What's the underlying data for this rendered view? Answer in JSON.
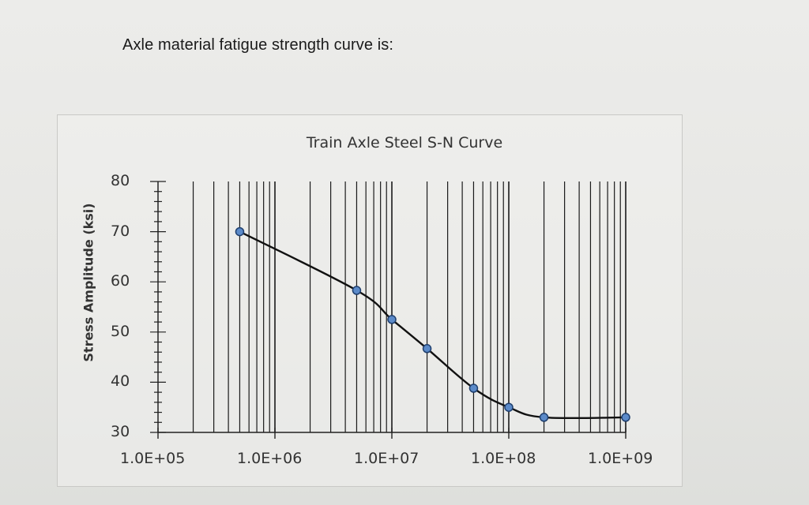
{
  "page": {
    "heading": "Axle material fatigue strength curve is:"
  },
  "chart_data": {
    "type": "line",
    "title": "Train Axle Steel  S-N Curve",
    "xlabel": "",
    "ylabel": "Stress Amplitude (ksi)",
    "x_scale": "log",
    "xlim": [
      100000,
      1000000000
    ],
    "ylim": [
      30,
      80
    ],
    "grid": {
      "x_minor_log": true,
      "y": false
    },
    "x_tick_labels": [
      "1.0E+05",
      "1.0E+06",
      "1.0E+07",
      "1.0E+08",
      "1.0E+09"
    ],
    "y_tick_labels": [
      "80",
      "70",
      "60",
      "50",
      "40",
      "30"
    ],
    "series": [
      {
        "x": [
          500000,
          5000000,
          10000000,
          20000000,
          50000000,
          100000000,
          200000000,
          1000000000
        ],
        "y": [
          70,
          58.3,
          52.5,
          46.7,
          38.8,
          35,
          33,
          33
        ]
      }
    ],
    "colors": {
      "line": "#111111",
      "marker_fill": "#5b8ac9",
      "marker_edge": "#1f3f6e",
      "grid": "#1a1a1a"
    }
  }
}
